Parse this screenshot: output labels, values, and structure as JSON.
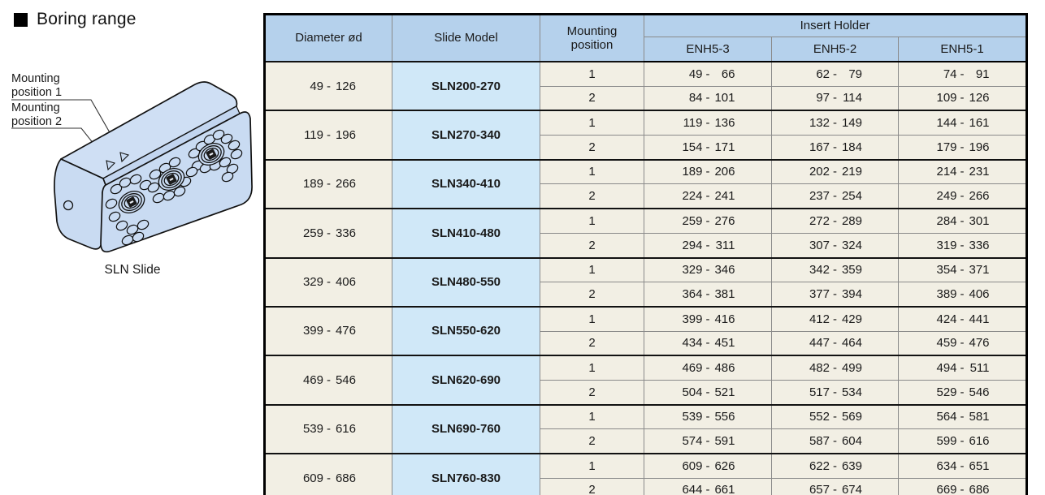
{
  "section": {
    "title": "Boring range"
  },
  "illustration": {
    "labels": [
      {
        "lines": [
          "Mounting",
          "position 1"
        ]
      },
      {
        "lines": [
          "Mounting",
          "position 2"
        ]
      }
    ],
    "caption": "SLN Slide"
  },
  "table": {
    "headers": {
      "diameter": "Diameter ød",
      "model": "Slide Model",
      "mounting": "Mounting position",
      "insert_holder": "Insert Holder",
      "holder_columns": [
        "ENH5-3",
        "ENH5-2",
        "ENH5-1"
      ]
    },
    "groups": [
      {
        "diameter": "49 - 126",
        "model": "SLN200-270",
        "rows": [
          {
            "position": "1",
            "ranges": [
              "49 - 66",
              "62 - 79",
              "74 - 91"
            ]
          },
          {
            "position": "2",
            "ranges": [
              "84 - 101",
              "97 - 114",
              "109 - 126"
            ]
          }
        ]
      },
      {
        "diameter": "119 - 196",
        "model": "SLN270-340",
        "rows": [
          {
            "position": "1",
            "ranges": [
              "119 - 136",
              "132 - 149",
              "144 - 161"
            ]
          },
          {
            "position": "2",
            "ranges": [
              "154 - 171",
              "167 - 184",
              "179 - 196"
            ]
          }
        ]
      },
      {
        "diameter": "189 - 266",
        "model": "SLN340-410",
        "rows": [
          {
            "position": "1",
            "ranges": [
              "189 - 206",
              "202 - 219",
              "214 - 231"
            ]
          },
          {
            "position": "2",
            "ranges": [
              "224 - 241",
              "237 - 254",
              "249 - 266"
            ]
          }
        ]
      },
      {
        "diameter": "259 - 336",
        "model": "SLN410-480",
        "rows": [
          {
            "position": "1",
            "ranges": [
              "259 - 276",
              "272 - 289",
              "284 - 301"
            ]
          },
          {
            "position": "2",
            "ranges": [
              "294 - 311",
              "307 - 324",
              "319 - 336"
            ]
          }
        ]
      },
      {
        "diameter": "329 - 406",
        "model": "SLN480-550",
        "rows": [
          {
            "position": "1",
            "ranges": [
              "329 - 346",
              "342 - 359",
              "354 - 371"
            ]
          },
          {
            "position": "2",
            "ranges": [
              "364 - 381",
              "377 - 394",
              "389 - 406"
            ]
          }
        ]
      },
      {
        "diameter": "399 - 476",
        "model": "SLN550-620",
        "rows": [
          {
            "position": "1",
            "ranges": [
              "399 - 416",
              "412 - 429",
              "424 - 441"
            ]
          },
          {
            "position": "2",
            "ranges": [
              "434 - 451",
              "447 - 464",
              "459 - 476"
            ]
          }
        ]
      },
      {
        "diameter": "469 - 546",
        "model": "SLN620-690",
        "rows": [
          {
            "position": "1",
            "ranges": [
              "469 - 486",
              "482 - 499",
              "494 - 511"
            ]
          },
          {
            "position": "2",
            "ranges": [
              "504 - 521",
              "517 - 534",
              "529 - 546"
            ]
          }
        ]
      },
      {
        "diameter": "539 - 616",
        "model": "SLN690-760",
        "rows": [
          {
            "position": "1",
            "ranges": [
              "539 - 556",
              "552 - 569",
              "564 - 581"
            ]
          },
          {
            "position": "2",
            "ranges": [
              "574 - 591",
              "587 - 604",
              "599 - 616"
            ]
          }
        ]
      },
      {
        "diameter": "609 - 686",
        "model": "SLN760-830",
        "rows": [
          {
            "position": "1",
            "ranges": [
              "609 - 626",
              "622 - 639",
              "634 - 651"
            ]
          },
          {
            "position": "2",
            "ranges": [
              "644 - 661",
              "657 - 674",
              "669 - 686"
            ]
          }
        ]
      }
    ]
  },
  "colors": {
    "header_fill": "#b5d1ec",
    "model_fill": "#d0e8f8",
    "cell_fill": "#f2efe4",
    "block_fill": "#c9dbf2",
    "heavy_border": "#000000",
    "light_border": "#8a8a8a"
  }
}
